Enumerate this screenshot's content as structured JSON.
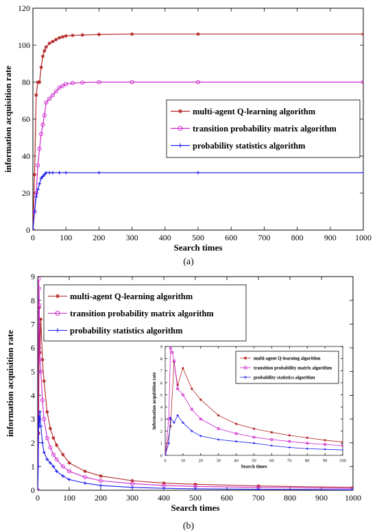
{
  "figure": {
    "panel_a_label": "(a)",
    "panel_b_label": "(b)"
  },
  "colors": {
    "qlearning": "#b22222",
    "matrix": "#cc22cc",
    "stats": "#1a1aee",
    "legend_border": "#000000"
  },
  "chart_data": [
    {
      "id": "a",
      "type": "line",
      "title": "",
      "xlabel": "Search times",
      "ylabel": "information acquisition rate",
      "xlim": [
        0,
        1000
      ],
      "ylim": [
        0,
        120
      ],
      "xticks": [
        0,
        100,
        200,
        300,
        400,
        500,
        600,
        700,
        800,
        900,
        1000
      ],
      "yticks": [
        0,
        20,
        40,
        60,
        80,
        100,
        120
      ],
      "grid": false,
      "legend_position": "center-right",
      "series": [
        {
          "name": "multi-agent Q-learning algorithm",
          "color": "#b22222",
          "marker": "star",
          "x": [
            0,
            5,
            10,
            15,
            20,
            25,
            30,
            35,
            40,
            50,
            60,
            70,
            80,
            90,
            100,
            120,
            150,
            200,
            300,
            500,
            1000
          ],
          "y": [
            0,
            30,
            73,
            80,
            80,
            88,
            94,
            97,
            99,
            101,
            102,
            103,
            104,
            104.5,
            105,
            105.3,
            105.5,
            105.8,
            106,
            106,
            106
          ]
        },
        {
          "name": "transition probability matrix algorithm",
          "color": "#cc22cc",
          "marker": "circle",
          "x": [
            0,
            5,
            10,
            15,
            20,
            25,
            30,
            35,
            40,
            50,
            60,
            70,
            80,
            90,
            100,
            120,
            150,
            200,
            300,
            500,
            1000
          ],
          "y": [
            0,
            10,
            20,
            35,
            44,
            52,
            57,
            62,
            69,
            71,
            73,
            75,
            77,
            78,
            79,
            79.5,
            79.8,
            80,
            80,
            80,
            80
          ]
        },
        {
          "name": "probability statistics algorithm",
          "color": "#1a1aee",
          "marker": "plus",
          "x": [
            0,
            5,
            10,
            15,
            20,
            25,
            30,
            35,
            40,
            50,
            60,
            80,
            100,
            200,
            500,
            1000
          ],
          "y": [
            0,
            10,
            18,
            22,
            25,
            28,
            29,
            30,
            31,
            31,
            31,
            31,
            31,
            31,
            31,
            31
          ]
        }
      ]
    },
    {
      "id": "b",
      "type": "line",
      "title": "",
      "xlabel": "Search times",
      "ylabel": "information acquisition rate",
      "xlim": [
        0,
        1000
      ],
      "ylim": [
        0,
        9
      ],
      "xticks": [
        0,
        100,
        200,
        300,
        400,
        500,
        600,
        700,
        800,
        900,
        1000
      ],
      "yticks": [
        0,
        1,
        2,
        3,
        4,
        5,
        6,
        7,
        8,
        9
      ],
      "grid": false,
      "legend_position": "top-left",
      "series": [
        {
          "name": "multi-agent Q-learning algorithm",
          "color": "#b22222",
          "marker": "star",
          "x": [
            0,
            3,
            5,
            7,
            10,
            15,
            20,
            30,
            40,
            50,
            60,
            80,
            100,
            150,
            200,
            300,
            400,
            500,
            700,
            1000
          ],
          "y": [
            0,
            2.4,
            7.7,
            5.8,
            7.2,
            5.5,
            4.6,
            3.3,
            2.6,
            2.2,
            1.9,
            1.5,
            1.15,
            0.8,
            0.6,
            0.4,
            0.3,
            0.25,
            0.18,
            0.12
          ]
        },
        {
          "name": "transition probability matrix algorithm",
          "color": "#cc22cc",
          "marker": "circle",
          "x": [
            0,
            2,
            3,
            4,
            5,
            7,
            10,
            15,
            20,
            30,
            40,
            50,
            60,
            80,
            100,
            150,
            200,
            300,
            400,
            500,
            700,
            1000
          ],
          "y": [
            0,
            3,
            8.9,
            8.5,
            7.8,
            5.5,
            5,
            3.8,
            3,
            2.2,
            1.8,
            1.5,
            1.3,
            1.0,
            0.8,
            0.55,
            0.4,
            0.28,
            0.2,
            0.16,
            0.12,
            0.08
          ]
        },
        {
          "name": "probability statistics algorithm",
          "color": "#1a1aee",
          "marker": "plus",
          "x": [
            0,
            2,
            3,
            5,
            7,
            10,
            15,
            20,
            30,
            40,
            50,
            60,
            80,
            100,
            150,
            200,
            300,
            400,
            500,
            700,
            1000
          ],
          "y": [
            0,
            1.0,
            3.1,
            2.7,
            3.3,
            2.7,
            2.0,
            1.6,
            1.3,
            1.15,
            1.0,
            0.8,
            0.6,
            0.45,
            0.3,
            0.2,
            0.12,
            0.08,
            0.06,
            0.04,
            0.02
          ]
        }
      ],
      "inset": {
        "xlabel": "Search times",
        "ylabel": "information acquisition rate",
        "xlim": [
          0,
          100
        ],
        "ylim": [
          0,
          9
        ],
        "xticks": [
          0,
          10,
          20,
          30,
          40,
          50,
          60,
          70,
          80,
          90,
          100
        ],
        "yticks": [
          0,
          1,
          2,
          3,
          4,
          5,
          6,
          7,
          8,
          9
        ],
        "legend_position": "top-right",
        "series": [
          {
            "name": "multi-agent Q-learning algorithm",
            "color": "#b22222",
            "marker": "star",
            "x": [
              0,
              3,
              5,
              7,
              10,
              15,
              20,
              30,
              40,
              50,
              60,
              70,
              80,
              90,
              100
            ],
            "y": [
              0,
              2.4,
              7.7,
              5.8,
              7.2,
              5.5,
              4.6,
              3.3,
              2.6,
              2.2,
              1.9,
              1.65,
              1.45,
              1.25,
              1.1
            ]
          },
          {
            "name": "transition probability matrix algorithm",
            "color": "#cc22cc",
            "marker": "circle",
            "x": [
              0,
              2,
              3,
              4,
              5,
              7,
              10,
              15,
              20,
              30,
              40,
              50,
              60,
              70,
              80,
              90,
              100
            ],
            "y": [
              0,
              3,
              8.9,
              8.5,
              7.8,
              5.5,
              5,
              3.8,
              3,
              2.2,
              1.8,
              1.5,
              1.3,
              1.15,
              1.0,
              0.9,
              0.8
            ]
          },
          {
            "name": "probability statistics algorithm",
            "color": "#1a1aee",
            "marker": "plus",
            "x": [
              0,
              2,
              3,
              5,
              7,
              10,
              15,
              20,
              30,
              40,
              50,
              60,
              70,
              80,
              90,
              100
            ],
            "y": [
              0,
              1.0,
              3.1,
              2.7,
              3.3,
              2.7,
              2.0,
              1.6,
              1.3,
              1.15,
              1.0,
              0.8,
              0.65,
              0.55,
              0.5,
              0.45
            ]
          }
        ]
      }
    }
  ]
}
